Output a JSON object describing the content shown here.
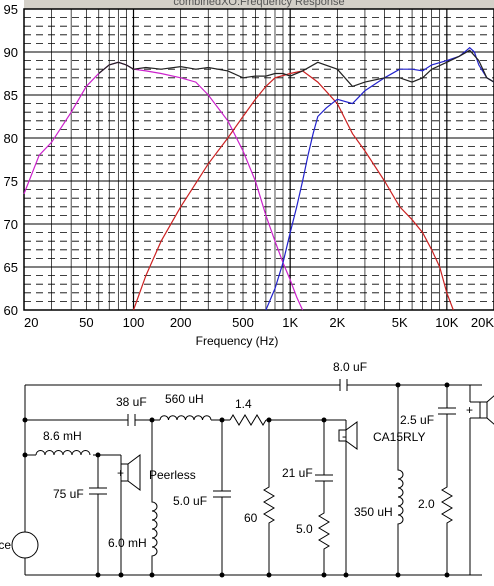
{
  "chart_data": {
    "type": "line",
    "title": "combinedXO:Frequency Response",
    "xlabel": "Frequency (Hz)",
    "ylabel": "",
    "x_scale": "log",
    "xlim": [
      20,
      20000
    ],
    "ylim": [
      60,
      95
    ],
    "x_ticks": [
      {
        "value": 20,
        "label": "20"
      },
      {
        "value": 50,
        "label": "50"
      },
      {
        "value": 100,
        "label": "100"
      },
      {
        "value": 200,
        "label": "200"
      },
      {
        "value": 500,
        "label": "500"
      },
      {
        "value": 1000,
        "label": "1K"
      },
      {
        "value": 2000,
        "label": "2K"
      },
      {
        "value": 5000,
        "label": "5K"
      },
      {
        "value": 10000,
        "label": "10K"
      },
      {
        "value": 20000,
        "label": "20K"
      }
    ],
    "y_ticks": [
      60,
      65,
      70,
      75,
      80,
      85,
      90,
      95
    ],
    "grid": true,
    "series": [
      {
        "color": "#cc22cc",
        "x": [
          20,
          25,
          30,
          40,
          50,
          60,
          70,
          80,
          90,
          100,
          120,
          150,
          200,
          250,
          300,
          400,
          500,
          600,
          700,
          800,
          900,
          1000,
          1100,
          1200
        ],
        "y": [
          73.5,
          78,
          79.5,
          83,
          86,
          87.5,
          88.5,
          88.8,
          88.5,
          88,
          87.8,
          87.5,
          87,
          86.5,
          85,
          82,
          78.5,
          75,
          71,
          68,
          65.5,
          63.5,
          61.5,
          60
        ]
      },
      {
        "color": "#cc2222",
        "x": [
          100,
          120,
          150,
          200,
          300,
          400,
          500,
          600,
          700,
          800,
          1000,
          1200,
          1500,
          2000,
          2500,
          3000,
          4000,
          5000,
          6000,
          7000,
          8000,
          9000,
          10000,
          11000
        ],
        "y": [
          60,
          64,
          68,
          72,
          77,
          80,
          82.5,
          84.5,
          86,
          87,
          87.5,
          87.8,
          86.5,
          84,
          80.5,
          78.5,
          75,
          72,
          70.5,
          69,
          67,
          65,
          62,
          60
        ]
      },
      {
        "color": "#2222cc",
        "x": [
          700,
          800,
          900,
          1000,
          1100,
          1200,
          1300,
          1400,
          1500,
          1700,
          2000,
          2500,
          3000,
          4000,
          5000,
          6000,
          7000,
          8000,
          10000,
          12000,
          13000,
          14000,
          15000,
          16000,
          18000,
          20000
        ],
        "y": [
          60,
          62.5,
          65.5,
          69,
          72,
          75,
          78,
          80.5,
          82.5,
          83.5,
          84.5,
          84,
          85.5,
          87,
          88,
          88,
          87.8,
          88.5,
          89,
          89.5,
          90,
          90.5,
          90,
          88.5,
          87,
          86.5
        ]
      },
      {
        "color": "#222222",
        "x": [
          60,
          70,
          80,
          90,
          100,
          120,
          150,
          200,
          250,
          300,
          400,
          500,
          600,
          700,
          800,
          900,
          1000,
          1200,
          1500,
          2000,
          2500,
          3000,
          4000,
          5000,
          6000,
          7000,
          8000,
          10000,
          12000,
          14000,
          16000,
          18000,
          20000
        ],
        "y": [
          87.5,
          88.5,
          88.8,
          88.5,
          88,
          88.2,
          88,
          88.3,
          88,
          88.2,
          87.8,
          87,
          87.2,
          87.2,
          87.5,
          87.5,
          87.2,
          87.8,
          88.8,
          88,
          86,
          86.5,
          87,
          87,
          86.5,
          87,
          88,
          88.8,
          89.5,
          90.2,
          89,
          87,
          86.5
        ]
      }
    ]
  },
  "schematic": {
    "capacitors": {
      "c_8uf": "8.0 uF",
      "c_38uf": "38 uF",
      "c_75uf": "75 uF",
      "c_5uf": "5.0 uF",
      "c_21uf": "21 uF",
      "c_2_5uf": "2.5 uF"
    },
    "inductors": {
      "l_8_6mh": "8.6 mH",
      "l_560uh": "560 uH",
      "l_6mh": "6.0 mH",
      "l_350uh": "350 uH"
    },
    "resistors": {
      "r_1_4": "1.4",
      "r_60": "60",
      "r_5": "5.0",
      "r_2": "2.0"
    },
    "drivers": {
      "woofer": "Peerless",
      "midrange": "CA15RLY"
    },
    "source_label": "Source"
  }
}
